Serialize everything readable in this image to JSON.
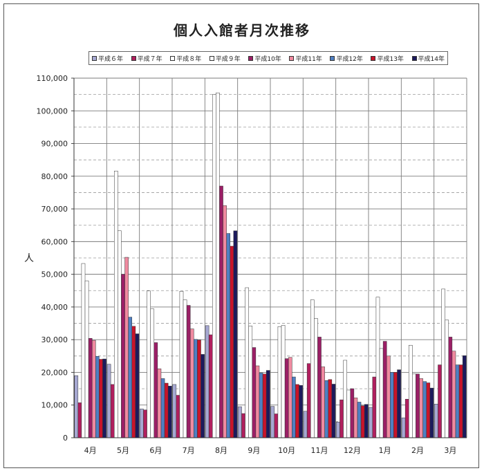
{
  "chart_data": {
    "type": "bar",
    "title": "個人入館者月次推移",
    "xlabel": "",
    "ylabel": "人",
    "ylim": [
      0,
      110000
    ],
    "y_ticks": [
      0,
      10000,
      20000,
      30000,
      40000,
      50000,
      60000,
      70000,
      80000,
      90000,
      100000,
      110000
    ],
    "y_tick_labels": [
      "0",
      "10,000",
      "20,000",
      "30,000",
      "40,000",
      "50,000",
      "60,000",
      "70,000",
      "80,000",
      "90,000",
      "100,000",
      "110,000"
    ],
    "grid": "solid major lines every 10,000 with dashed minor lines at 5,000 intervals",
    "legend_position": "top",
    "categories": [
      "4月",
      "5月",
      "6月",
      "7月",
      "8月",
      "9月",
      "10月",
      "11月",
      "12月",
      "1月",
      "2月",
      "3月"
    ],
    "series": [
      {
        "name": "平成６年",
        "color": "#a6a8d2",
        "values": [
          19000,
          22500,
          8800,
          16300,
          34300,
          9500,
          9600,
          8100,
          4800,
          9300,
          6100,
          10300
        ]
      },
      {
        "name": "平成７年",
        "color": "#b01f5e",
        "values": [
          10700,
          16300,
          8500,
          13000,
          31500,
          7400,
          7300,
          22700,
          11600,
          18600,
          11800,
          22300
        ]
      },
      {
        "name": "平成８年",
        "color": "#ffffff",
        "values": [
          53300,
          81600,
          44900,
          44800,
          105000,
          45900,
          34000,
          42200,
          23700,
          43000,
          28300,
          45500
        ]
      },
      {
        "name": "平成９年",
        "color": "#ffffff",
        "values": [
          48000,
          63300,
          39400,
          42200,
          105500,
          34200,
          34400,
          36500,
          14600,
          27300,
          19500,
          36000
        ]
      },
      {
        "name": "平成10年",
        "color": "#9b1f66",
        "values": [
          30400,
          50000,
          29100,
          40500,
          77000,
          27600,
          24200,
          30800,
          15000,
          29500,
          19500,
          30800
        ]
      },
      {
        "name": "平成11年",
        "color": "#f08aa0",
        "values": [
          29800,
          55200,
          21100,
          33300,
          71000,
          22000,
          24600,
          21700,
          12200,
          25000,
          18100,
          26500
        ]
      },
      {
        "name": "平成12年",
        "color": "#4f7fc2",
        "values": [
          24900,
          36900,
          18100,
          30100,
          62500,
          19800,
          18600,
          17500,
          10900,
          20000,
          17200,
          22300
        ]
      },
      {
        "name": "平成13年",
        "color": "#c8142a",
        "values": [
          24000,
          34100,
          16700,
          29900,
          58600,
          19500,
          16300,
          17800,
          9800,
          20000,
          16800,
          22300
        ]
      },
      {
        "name": "平成14年",
        "color": "#1c1a5c",
        "values": [
          24100,
          31800,
          15800,
          25500,
          63300,
          20600,
          16000,
          16400,
          10200,
          20800,
          15200,
          25100
        ]
      }
    ]
  }
}
